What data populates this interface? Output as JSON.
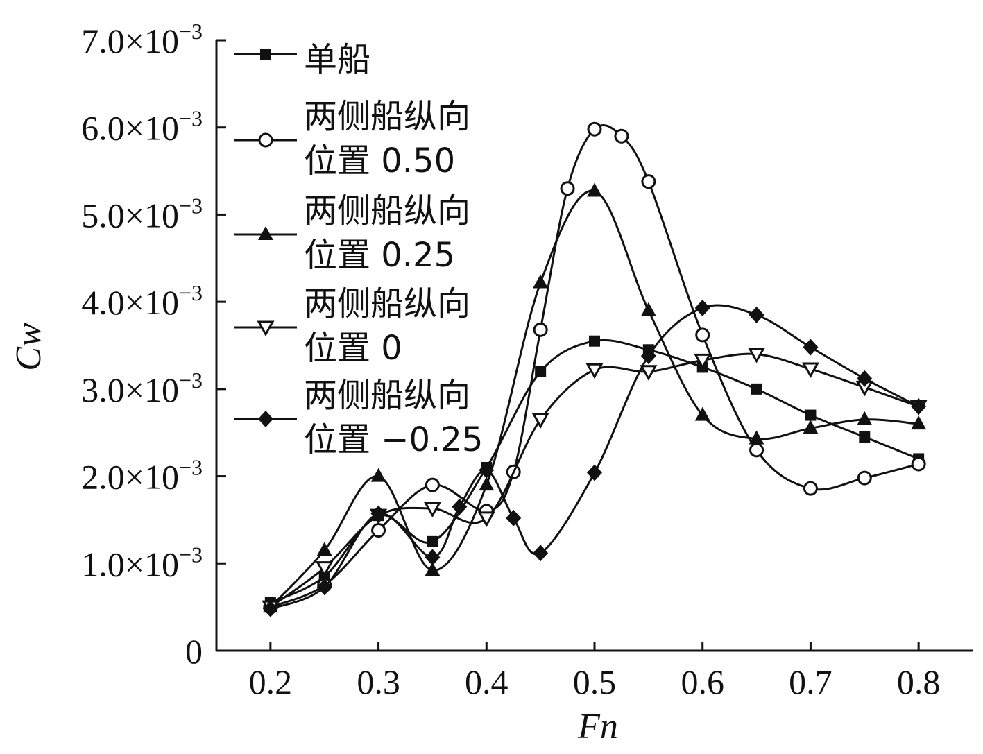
{
  "chart_data": {
    "type": "line",
    "xlabel": "Fn",
    "ylabel": "Cw",
    "xlim": [
      0.15,
      0.85
    ],
    "ylim": [
      0,
      0.007
    ],
    "x_ticks": [
      "0.2",
      "0.3",
      "0.4",
      "0.5",
      "0.6",
      "0.7",
      "0.8"
    ],
    "x_tick_values": [
      0.2,
      0.3,
      0.4,
      0.5,
      0.6,
      0.7,
      0.8
    ],
    "y_ticks": [
      {
        "value": 0,
        "mantissa": "0",
        "sup": ""
      },
      {
        "value": 0.001,
        "mantissa": "1.0×10",
        "sup": "−3"
      },
      {
        "value": 0.002,
        "mantissa": "2.0×10",
        "sup": "−3"
      },
      {
        "value": 0.003,
        "mantissa": "3.0×10",
        "sup": "−3"
      },
      {
        "value": 0.004,
        "mantissa": "4.0×10",
        "sup": "−3"
      },
      {
        "value": 0.005,
        "mantissa": "5.0×10",
        "sup": "−3"
      },
      {
        "value": 0.006,
        "mantissa": "6.0×10",
        "sup": "−3"
      },
      {
        "value": 0.007,
        "mantissa": "7.0×10",
        "sup": "−3"
      }
    ],
    "grid": false,
    "legend_position": "top-left",
    "series": [
      {
        "name": "单船",
        "legend_lines": [
          "单船"
        ],
        "marker": "square-filled",
        "x": [
          0.2,
          0.25,
          0.3,
          0.35,
          0.4,
          0.45,
          0.5,
          0.55,
          0.6,
          0.65,
          0.7,
          0.75,
          0.8
        ],
        "y": [
          0.00055,
          0.00085,
          0.00155,
          0.00125,
          0.0021,
          0.0032,
          0.00355,
          0.00345,
          0.00325,
          0.003,
          0.0027,
          0.00245,
          0.0022
        ]
      },
      {
        "name": "两侧船纵向位置 0.50",
        "legend_lines": [
          "两侧船纵向",
          "位置 0.50"
        ],
        "marker": "circle-open",
        "x": [
          0.2,
          0.25,
          0.3,
          0.35,
          0.4,
          0.425,
          0.45,
          0.475,
          0.5,
          0.525,
          0.55,
          0.6,
          0.65,
          0.7,
          0.75,
          0.8
        ],
        "y": [
          0.0005,
          0.00075,
          0.00138,
          0.0019,
          0.0016,
          0.00205,
          0.00368,
          0.0053,
          0.00598,
          0.0059,
          0.00538,
          0.00362,
          0.0023,
          0.00186,
          0.00198,
          0.00214
        ]
      },
      {
        "name": "两侧船纵向位置 0.25",
        "legend_lines": [
          "两侧船纵向",
          "位置 0.25"
        ],
        "marker": "triangle-up-filled",
        "x": [
          0.2,
          0.25,
          0.3,
          0.35,
          0.4,
          0.45,
          0.5,
          0.55,
          0.6,
          0.65,
          0.7,
          0.75,
          0.8
        ],
        "y": [
          0.0005,
          0.00115,
          0.002,
          0.00092,
          0.0019,
          0.00422,
          0.00527,
          0.0039,
          0.0027,
          0.00243,
          0.00255,
          0.00265,
          0.0026
        ]
      },
      {
        "name": "两侧船纵向位置 0",
        "legend_lines": [
          "两侧船纵向",
          "位置 0"
        ],
        "marker": "triangle-down-open",
        "x": [
          0.2,
          0.25,
          0.3,
          0.35,
          0.4,
          0.45,
          0.5,
          0.55,
          0.6,
          0.65,
          0.7,
          0.75,
          0.8
        ],
        "y": [
          0.0005,
          0.00095,
          0.00155,
          0.00163,
          0.00152,
          0.00265,
          0.00322,
          0.0032,
          0.00333,
          0.0034,
          0.00323,
          0.00302,
          0.0028
        ]
      },
      {
        "name": "两侧船纵向位置 −0.25",
        "legend_lines": [
          "两侧船纵向",
          "位置 −0.25"
        ],
        "marker": "diamond-filled",
        "x": [
          0.2,
          0.25,
          0.3,
          0.35,
          0.375,
          0.4,
          0.425,
          0.45,
          0.5,
          0.55,
          0.6,
          0.65,
          0.7,
          0.75,
          0.8
        ],
        "y": [
          0.00048,
          0.00073,
          0.00157,
          0.00107,
          0.00165,
          0.00207,
          0.00152,
          0.00112,
          0.00204,
          0.00338,
          0.00393,
          0.00385,
          0.00348,
          0.00312,
          0.0028
        ]
      }
    ]
  }
}
